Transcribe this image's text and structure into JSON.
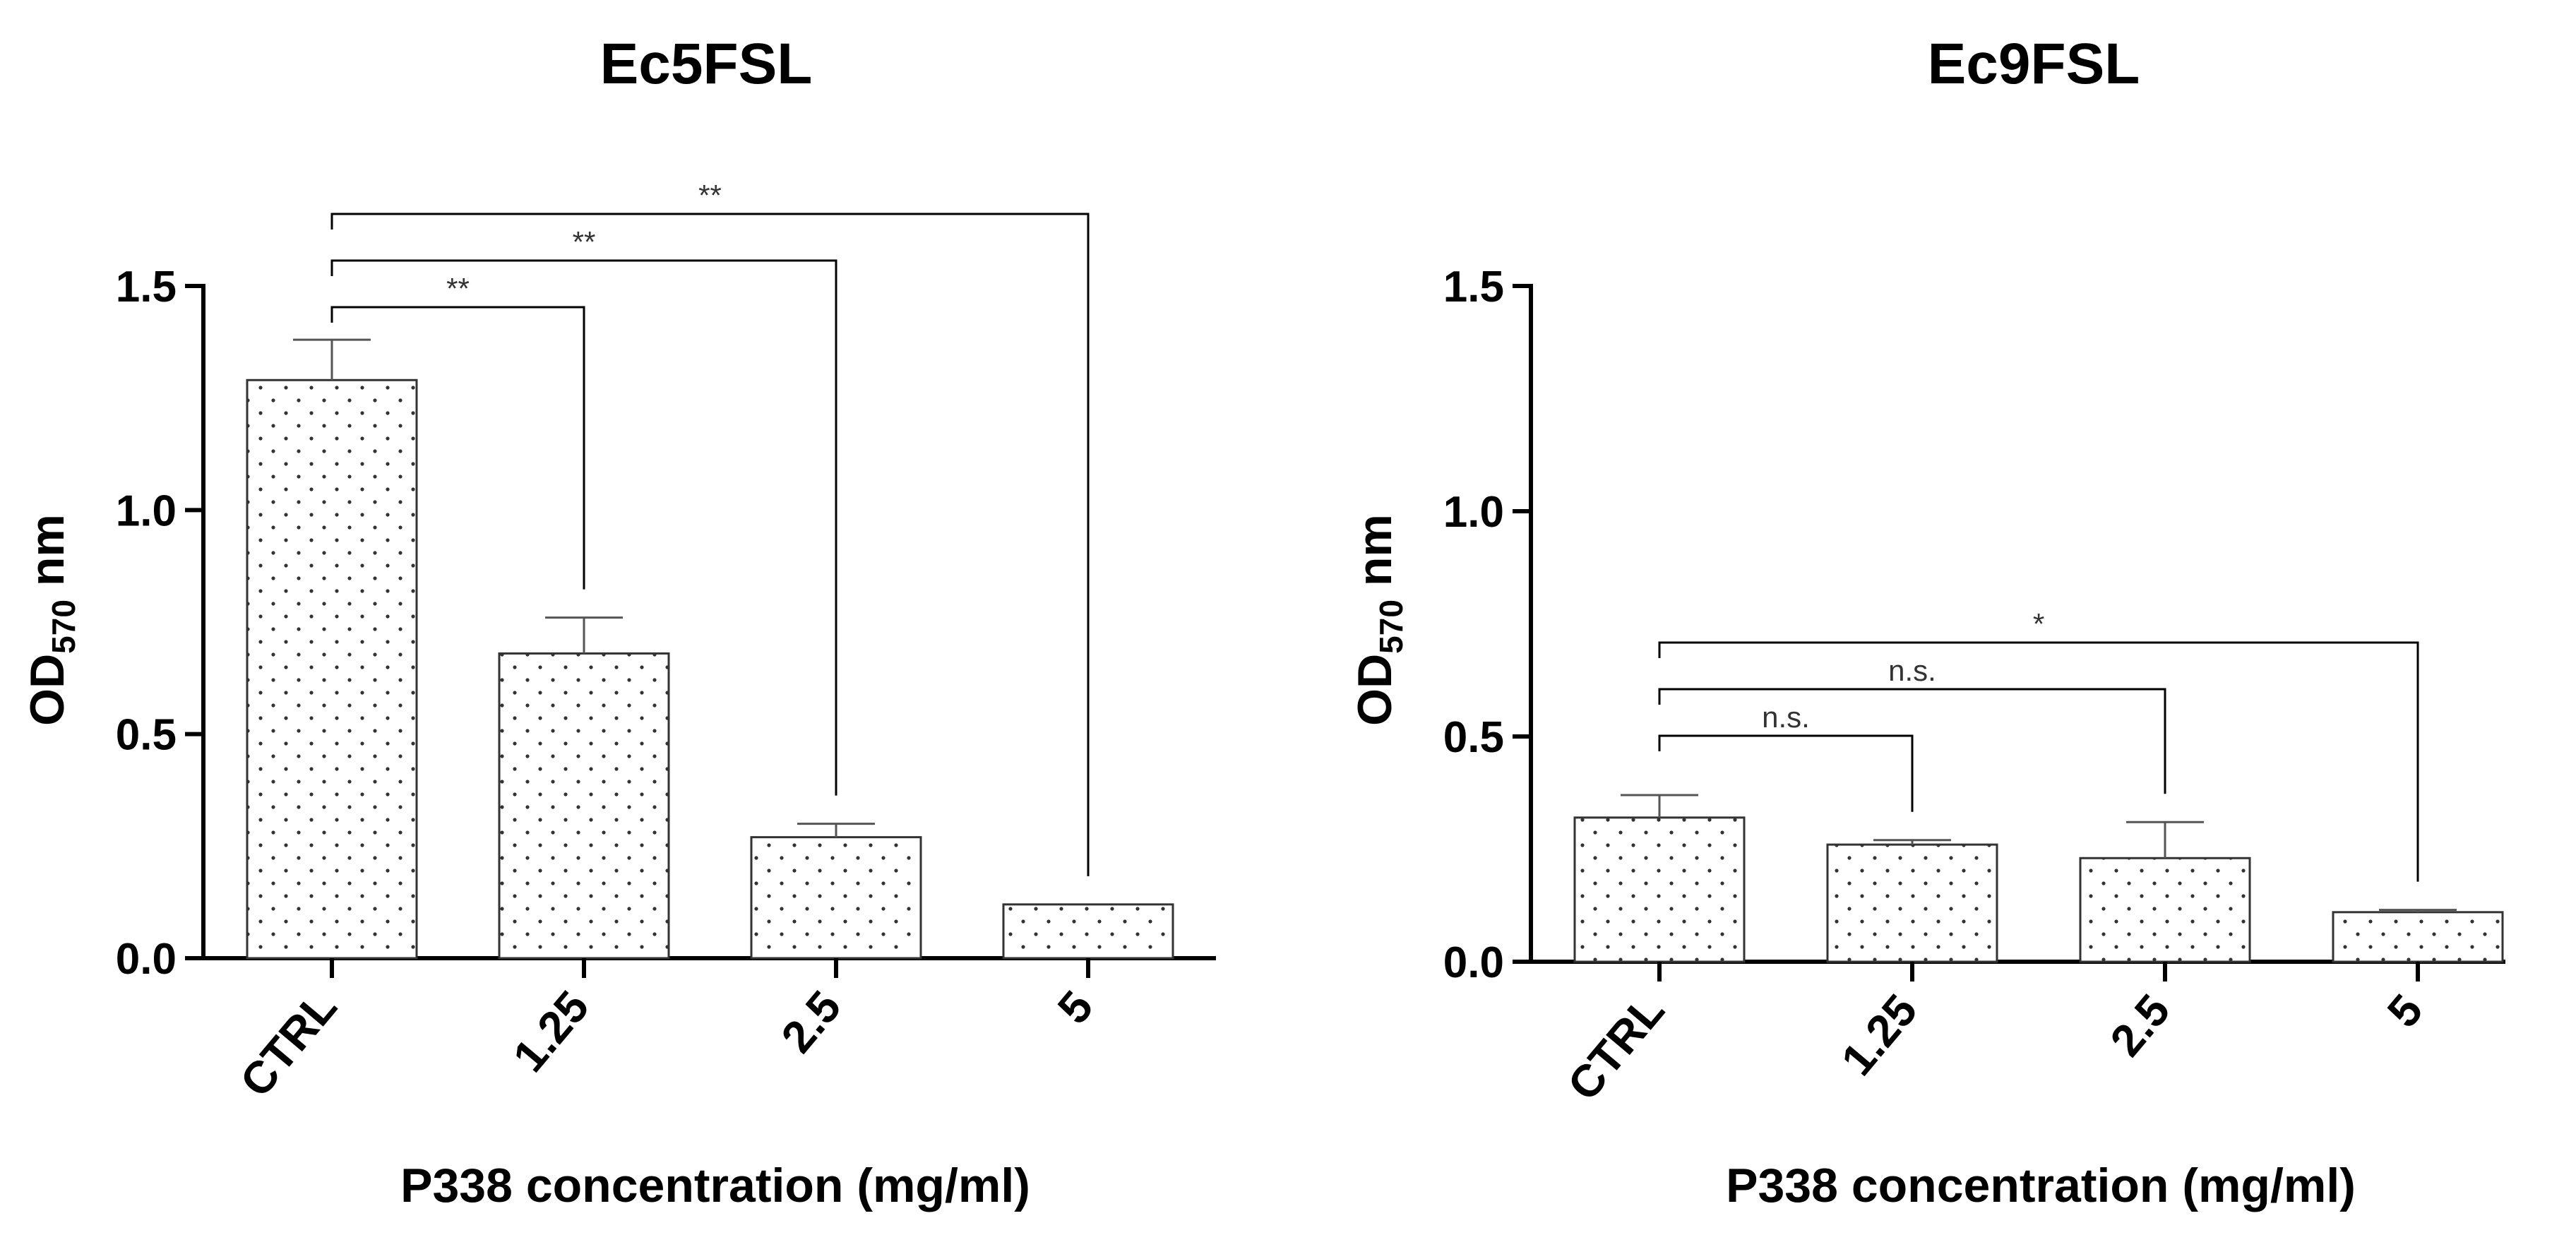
{
  "chart_data": [
    {
      "type": "bar",
      "title": "Ec5FSL",
      "xlabel": "P338 concentration (mg/ml)",
      "ylabel": {
        "main": "OD",
        "sub": "570",
        "suffix": " nm"
      },
      "categories": [
        "CTRL",
        "1.25",
        "2.5",
        "5"
      ],
      "values": [
        1.29,
        0.68,
        0.27,
        0.12
      ],
      "errors": [
        0.09,
        0.08,
        0.03,
        0.0
      ],
      "ylim": [
        0,
        1.5
      ],
      "yticks": [
        0.0,
        0.5,
        1.0,
        1.5
      ],
      "ytick_labels": [
        "0.0",
        "0.5",
        "1.0",
        "1.5"
      ],
      "comparisons": [
        {
          "from": 0,
          "to": 1,
          "label": "**"
        },
        {
          "from": 0,
          "to": 2,
          "label": "**"
        },
        {
          "from": 0,
          "to": 3,
          "label": "**"
        }
      ]
    },
    {
      "type": "bar",
      "title": "Ec9FSL",
      "xlabel": "P338 concentration (mg/ml)",
      "ylabel": {
        "main": "OD",
        "sub": "570",
        "suffix": " nm"
      },
      "categories": [
        "CTRL",
        "1.25",
        "2.5",
        "5"
      ],
      "values": [
        0.32,
        0.26,
        0.23,
        0.11
      ],
      "errors": [
        0.05,
        0.01,
        0.08,
        0.005
      ],
      "ylim": [
        0,
        1.5
      ],
      "yticks": [
        0.0,
        0.5,
        1.0,
        1.5
      ],
      "ytick_labels": [
        "0.0",
        "0.5",
        "1.0",
        "1.5"
      ],
      "comparisons": [
        {
          "from": 0,
          "to": 1,
          "label": "n.s."
        },
        {
          "from": 0,
          "to": 2,
          "label": "n.s."
        },
        {
          "from": 0,
          "to": 3,
          "label": "*"
        }
      ]
    }
  ],
  "colors": {
    "bar_fill": "#ffffff",
    "bar_dots": "#333333",
    "axis": "#000000",
    "error_bar": "#555555"
  }
}
